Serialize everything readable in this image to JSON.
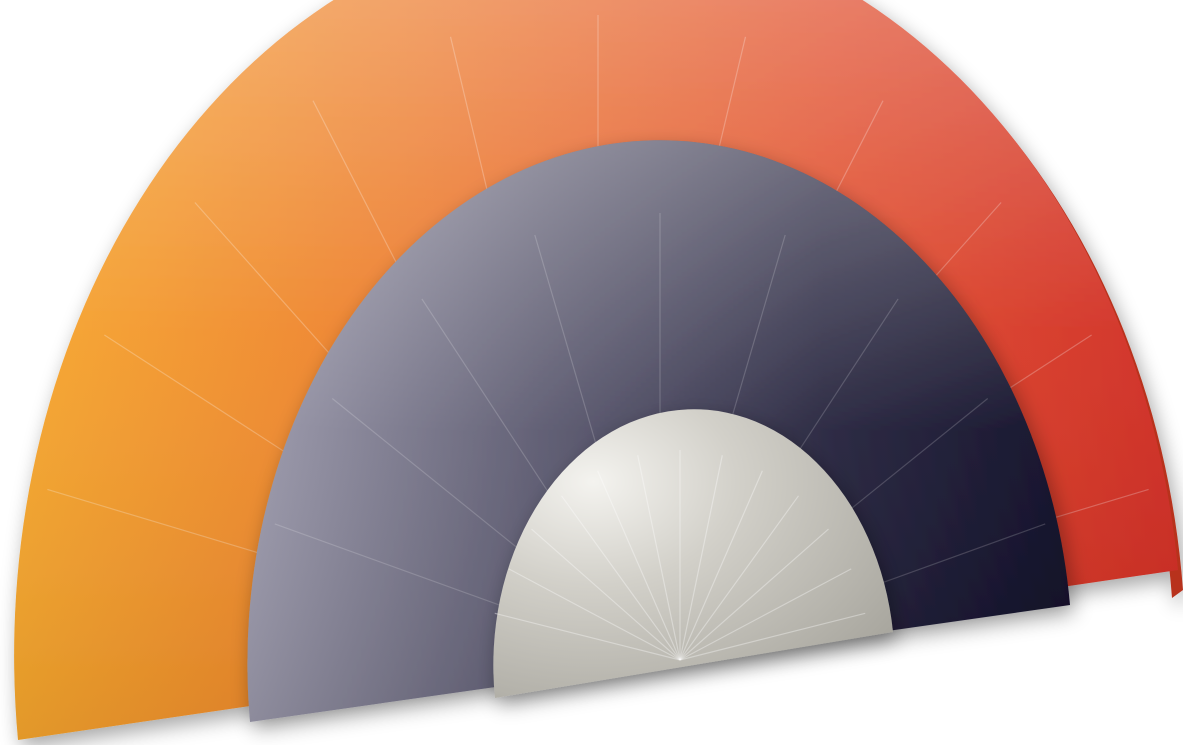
{
  "illustration": {
    "subject": "three-nested-semicircle-fans",
    "layers": [
      {
        "id": "outer",
        "tone": "orange-red",
        "colors": [
          "#f6a62c",
          "#ec7a2c",
          "#e04a28",
          "#cf2a22"
        ],
        "segments": 12
      },
      {
        "id": "middle",
        "tone": "slate-navy",
        "colors": [
          "#9a98aa",
          "#5c5a70",
          "#24223c",
          "#0c0a24"
        ],
        "segments": 10
      },
      {
        "id": "inner",
        "tone": "silver",
        "colors": [
          "#e2e0da",
          "#c3c1b9",
          "#a9a79f"
        ],
        "segments": 1
      }
    ],
    "background": "#ffffff"
  }
}
